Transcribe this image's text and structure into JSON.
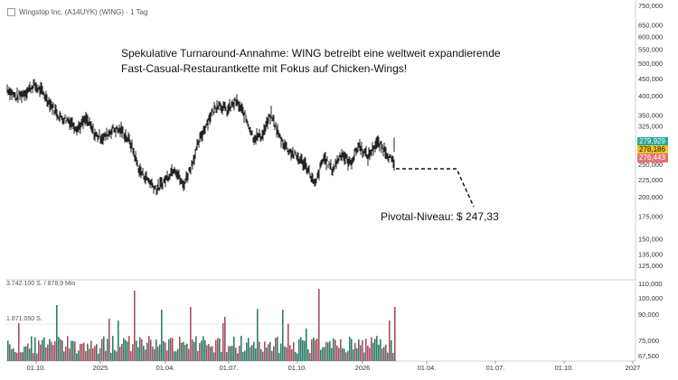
{
  "header": {
    "title": "Wingstop Inc. (A14UYK) (WING) · 1 Tag"
  },
  "annotation": {
    "line1": "Spekulative Turnaround-Annahme: WING betreibt eine weltweit expandierende",
    "line2": "Fast-Casual-Restaurantkette mit Fokus auf Chicken-Wings!",
    "pivot": "Pivotal-Niveau: $ 247,33"
  },
  "volume_labels": {
    "top": "3.742.100 S. / 878,9 Mio",
    "mid": "1.871.050 S."
  },
  "price_tags": [
    {
      "label": "279,929",
      "value": 279.929,
      "color": "#26a69a"
    },
    {
      "label": "278,186",
      "value": 278.186,
      "color": "#f2c31b",
      "text_color": "#111111"
    },
    {
      "label": "276,443",
      "value": 276.443,
      "color": "#e57373"
    }
  ],
  "chart_data": {
    "type": "line",
    "title": "Wingstop Inc. (A14UYK) (WING) · 1 Tag",
    "price_axis_ticks": [
      {
        "label": "750,000",
        "value": 750
      },
      {
        "label": "650,000",
        "value": 650
      },
      {
        "label": "600,000",
        "value": 600
      },
      {
        "label": "550,000",
        "value": 550
      },
      {
        "label": "500,000",
        "value": 500
      },
      {
        "label": "450,000",
        "value": 450
      },
      {
        "label": "400,000",
        "value": 400
      },
      {
        "label": "350,000",
        "value": 350
      },
      {
        "label": "325,000",
        "value": 325
      },
      {
        "label": "250,000",
        "value": 250
      },
      {
        "label": "225,000",
        "value": 225
      },
      {
        "label": "200,000",
        "value": 200
      },
      {
        "label": "175,000",
        "value": 175
      },
      {
        "label": "150,000",
        "value": 150
      },
      {
        "label": "135,000",
        "value": 135
      },
      {
        "label": "125,000",
        "value": 125
      },
      {
        "label": "110,000",
        "value": 110
      },
      {
        "label": "100,000",
        "value": 100
      },
      {
        "label": "90,000",
        "value": 90
      },
      {
        "label": "75,000",
        "value": 75
      },
      {
        "label": "67,500",
        "value": 67.5
      }
    ],
    "x_ticks": [
      "01.10.",
      "2025",
      "01.04.",
      "01.07.",
      "01.10.",
      "2026",
      "01.04.",
      "01.07.",
      "01.10.",
      "2027"
    ],
    "series": [
      {
        "x": [
          "2024-09",
          "2024-09",
          "2024-10",
          "2024-10",
          "2024-10",
          "2024-11",
          "2024-11",
          "2024-11",
          "2024-12",
          "2024-12",
          "2024-12",
          "2025-01",
          "2025-01",
          "2025-02",
          "2025-02",
          "2025-03",
          "2025-03",
          "2025-03",
          "2025-04",
          "2025-04",
          "2025-04",
          "2025-05",
          "2025-05",
          "2025-06",
          "2025-06",
          "2025-06",
          "2025-07",
          "2025-07",
          "2025-07",
          "2025-08",
          "2025-08",
          "2025-09",
          "2025-09",
          "2025-10",
          "2025-10",
          "2025-10",
          "2025-11",
          "2025-11",
          "2025-12",
          "2025-12",
          "2026-01",
          "2026-01",
          "2026-02",
          "2026-02",
          "2026-02"
        ],
        "values": [
          420,
          395,
          408,
          430,
          410,
          375,
          345,
          338,
          320,
          340,
          305,
          300,
          318,
          315,
          290,
          240,
          225,
          210,
          225,
          245,
          215,
          250,
          300,
          345,
          380,
          360,
          385,
          350,
          300,
          305,
          350,
          300,
          275,
          262,
          248,
          215,
          262,
          240,
          270,
          250,
          285,
          262,
          290,
          275,
          248
        ]
      }
    ],
    "ylim": [
      67.5,
      750
    ],
    "scale": "log"
  }
}
